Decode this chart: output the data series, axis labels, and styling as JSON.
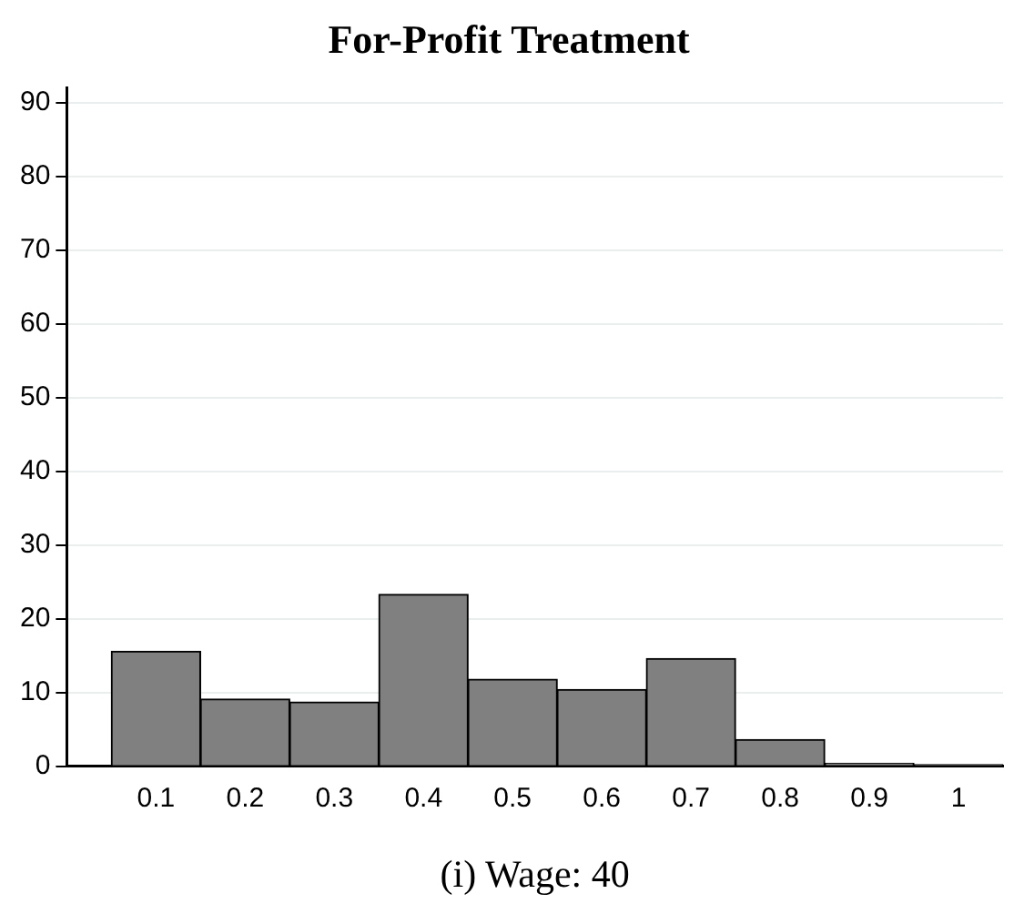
{
  "chart_data": {
    "type": "histogram",
    "title": "For-Profit Treatment",
    "xlabel": "(i) Wage: 40",
    "bins": [
      0.05,
      0.15,
      0.25,
      0.35,
      0.45,
      0.55,
      0.65,
      0.75,
      0.85,
      0.95,
      1.05
    ],
    "values": [
      15.6,
      9.1,
      8.7,
      23.3,
      11.8,
      10.4,
      14.6,
      3.6,
      0.4,
      0.2
    ],
    "color": "#808080",
    "xlim": [
      0,
      1.05
    ],
    "xticks": [
      0.1,
      0.2,
      0.3,
      0.4,
      0.5,
      0.6,
      0.7,
      0.8,
      0.9,
      1
    ],
    "ylim": [
      0,
      92
    ],
    "yticks": [
      0,
      10,
      20,
      30,
      40,
      50,
      60,
      70,
      80,
      90
    ],
    "grid": "y"
  }
}
